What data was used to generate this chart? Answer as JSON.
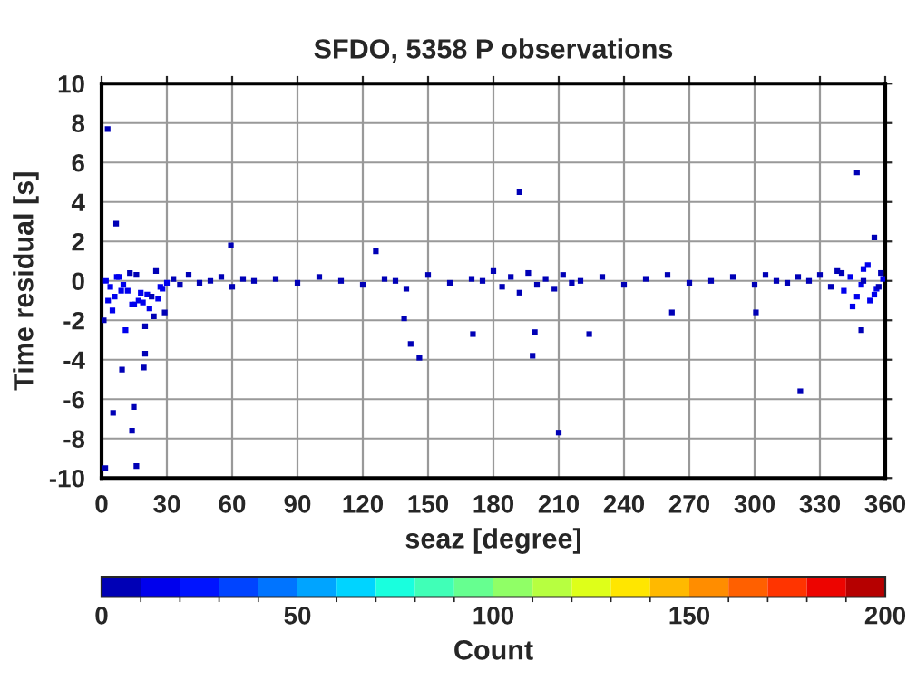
{
  "chart_data": {
    "type": "scatter",
    "title": "SFDO, 5358 P observations",
    "xlabel": "seaz [degree]",
    "ylabel": "Time residual [s]",
    "clabel": "Count",
    "xlim": [
      0,
      360
    ],
    "xticks": [
      0,
      30,
      60,
      90,
      120,
      150,
      180,
      210,
      240,
      270,
      300,
      330,
      360
    ],
    "ylim": [
      -10,
      10
    ],
    "yticks": [
      -10,
      -8,
      -6,
      -4,
      -2,
      0,
      2,
      4,
      6,
      8,
      10
    ],
    "clim": [
      0,
      200
    ],
    "cticks": [
      0,
      50,
      100,
      150,
      200
    ],
    "grid": true,
    "marker": "square",
    "series": [
      {
        "x": [
          2.8,
          6.7,
          1.7,
          16,
          14,
          5.3,
          14.8,
          9.4,
          19.4,
          20,
          59.4,
          126,
          142,
          146,
          170.6,
          139,
          192,
          347,
          355,
          198,
          210,
          199,
          224,
          321,
          349,
          300.6,
          262,
          2,
          4,
          8,
          12,
          3,
          6,
          10,
          14,
          18,
          22,
          26,
          30,
          24,
          28,
          16,
          20,
          1,
          5,
          9,
          13,
          17,
          21,
          25,
          29,
          33,
          36,
          40,
          45,
          50,
          55,
          60,
          65,
          70,
          80,
          90,
          100,
          110,
          120,
          130,
          135,
          140,
          150,
          160,
          170,
          175,
          180,
          184,
          188,
          192,
          196,
          200,
          204,
          208,
          212,
          216,
          220,
          230,
          240,
          250,
          260,
          270,
          280,
          290,
          300,
          305,
          310,
          315,
          320,
          325,
          330,
          335,
          338,
          341,
          344,
          347,
          350,
          353,
          356,
          359,
          345,
          349,
          352,
          355,
          358,
          340,
          350,
          357,
          7,
          11,
          23,
          27,
          15,
          19
        ],
        "values": [
          7.7,
          2.9,
          -9.5,
          -9.4,
          -7.6,
          -6.7,
          -6.4,
          -4.5,
          -4.4,
          -3.7,
          1.8,
          1.5,
          -3.2,
          -3.9,
          -2.7,
          -1.9,
          4.5,
          5.5,
          2.2,
          -3.8,
          -7.7,
          -2.6,
          -2.7,
          -5.6,
          -2.5,
          -1.6,
          -1.6,
          0,
          -0.3,
          0.2,
          -0.5,
          -1,
          -0.8,
          -0.2,
          -1.2,
          -0.6,
          -1.4,
          -0.9,
          -0.1,
          -1.8,
          -0.4,
          0.3,
          -2.3,
          -2,
          -1.5,
          -0.5,
          0.4,
          -1,
          -0.7,
          0.5,
          -1.6,
          0.1,
          -0.2,
          0.3,
          -0.1,
          0,
          0.2,
          -0.3,
          0.1,
          0,
          0.1,
          -0.1,
          0.2,
          0,
          -0.2,
          0.1,
          0,
          -0.4,
          0.3,
          -0.1,
          0.1,
          0,
          0.5,
          -0.3,
          0.2,
          -0.6,
          0.4,
          -0.2,
          0.1,
          -0.4,
          0.3,
          -0.1,
          0,
          0.2,
          -0.2,
          0.1,
          0.3,
          -0.1,
          0,
          0.2,
          -0.2,
          0.3,
          0,
          -0.1,
          0.2,
          0,
          0.3,
          -0.3,
          0.5,
          -0.5,
          0.2,
          -0.8,
          0.6,
          -1,
          -0.4,
          0.1,
          -1.3,
          -0.2,
          0.8,
          -0.7,
          0.4,
          0.4,
          0,
          -0.3,
          0.2,
          -2.5,
          -0.8,
          -0.3,
          -1.2,
          -1.1
        ],
        "cvalues": [
          1,
          1,
          1,
          1,
          1,
          1,
          1,
          1,
          1,
          1,
          1,
          1,
          1,
          1,
          1,
          1,
          1,
          1,
          1,
          1,
          1,
          1,
          1,
          1,
          1,
          1,
          1,
          12,
          12,
          12,
          12,
          12,
          12,
          12,
          12,
          12,
          12,
          12,
          12,
          3,
          12,
          3,
          3,
          3,
          12,
          12,
          3,
          12,
          12,
          3,
          3,
          3,
          3,
          3,
          3,
          3,
          3,
          3,
          3,
          3,
          3,
          3,
          3,
          3,
          3,
          3,
          3,
          3,
          3,
          3,
          3,
          3,
          3,
          3,
          3,
          3,
          3,
          3,
          3,
          3,
          3,
          3,
          3,
          3,
          3,
          3,
          3,
          3,
          3,
          3,
          3,
          3,
          3,
          3,
          3,
          3,
          3,
          3,
          3,
          12,
          12,
          12,
          12,
          12,
          12,
          12,
          12,
          12,
          12,
          12,
          3,
          3,
          3,
          3,
          12,
          12,
          3,
          12,
          12,
          12
        ]
      }
    ]
  }
}
